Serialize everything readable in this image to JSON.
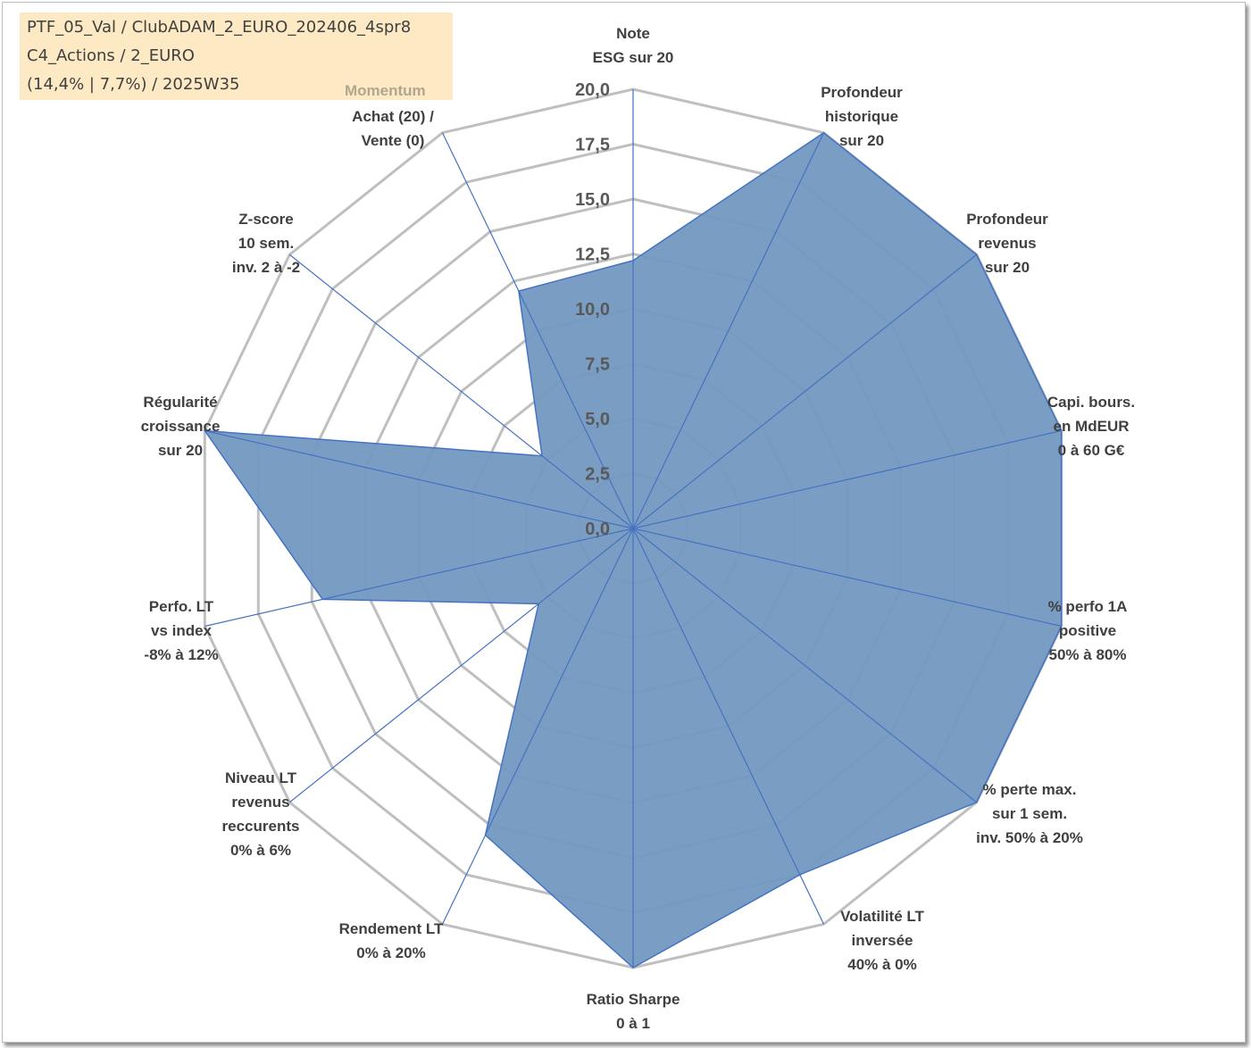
{
  "header": {
    "line1": "PTF_05_Val / ClubADAM_2_EURO_202406_4spr8",
    "line2": "C4_Actions / 2_EURO",
    "line3": "(14,4% | 7,7%) / 2025W35"
  },
  "colors": {
    "fill": "#7399c0",
    "series_line": "#4472c4",
    "grid": "#bfbfbf",
    "title_bg": "#fde9c3"
  },
  "chart_data": {
    "type": "radar",
    "rlim": [
      0,
      20
    ],
    "ticks": [
      "0,0",
      "2,5",
      "5,0",
      "7,5",
      "10,0",
      "12,5",
      "15,0",
      "17,5",
      "20,0"
    ],
    "axes": [
      {
        "id": "note-esg",
        "lines": [
          "Note",
          "ESG sur 20"
        ]
      },
      {
        "id": "profondeur-historique",
        "lines": [
          "Profondeur",
          "historique",
          "sur 20"
        ]
      },
      {
        "id": "profondeur-revenus",
        "lines": [
          "Profondeur",
          "revenus",
          "sur 20"
        ]
      },
      {
        "id": "capi-bours",
        "lines": [
          "Capi. bours.",
          "en MdEUR",
          "0 à 60 G€"
        ]
      },
      {
        "id": "perfo-1a",
        "lines": [
          "% perfo 1A",
          "positive",
          "50% à 80%"
        ]
      },
      {
        "id": "perte-max",
        "lines": [
          "% perte max.",
          "sur 1 sem.",
          "inv. 50% à 20%"
        ]
      },
      {
        "id": "volatilite-lt",
        "lines": [
          "Volatilité LT",
          "inversée",
          "40% à 0%"
        ]
      },
      {
        "id": "ratio-sharpe",
        "lines": [
          "Ratio Sharpe",
          "0 à 1"
        ]
      },
      {
        "id": "rendement-lt",
        "lines": [
          "Rendement LT",
          "0% à 20%"
        ]
      },
      {
        "id": "niveau-lt-revenus",
        "lines": [
          "Niveau LT",
          "revenus",
          "reccurents",
          "0% à 6%"
        ]
      },
      {
        "id": "perfo-lt-index",
        "lines": [
          "Perfo. LT",
          "vs index",
          "-8% à 12%"
        ]
      },
      {
        "id": "regularite-croissance",
        "lines": [
          "Régularité",
          "croissance",
          "sur 20"
        ]
      },
      {
        "id": "z-score",
        "lines": [
          "Z-score",
          "10 sem.",
          "inv. 2 à -2"
        ]
      },
      {
        "id": "momentum",
        "lines": [
          "Momentum",
          "Achat (20) /",
          "Vente (0)"
        ]
      }
    ],
    "values": [
      12.2,
      20,
      20,
      20,
      20,
      20,
      17.5,
      20,
      15.5,
      5.5,
      14.5,
      20,
      5.3,
      12.0
    ],
    "grid": true,
    "legend": "none"
  }
}
